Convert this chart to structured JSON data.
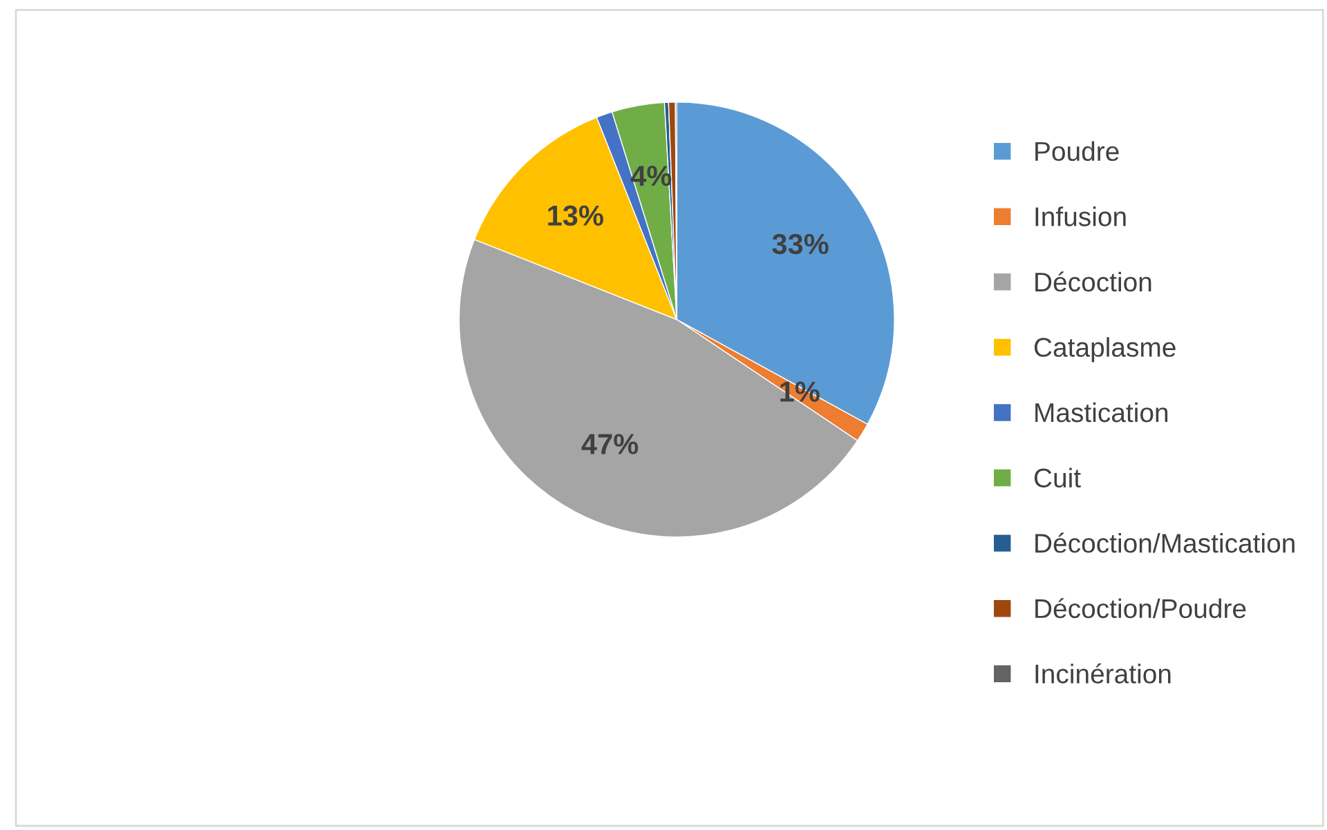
{
  "chart_data": {
    "type": "pie",
    "categories": [
      "Poudre",
      "Infusion",
      "Décoction",
      "Cataplasme",
      "Mastication",
      "Cuit",
      "Décoction/Mastication",
      "Décoction/Poudre",
      "Incinération"
    ],
    "values": [
      33,
      1.4,
      46.6,
      13,
      1.2,
      3.9,
      0.3,
      0.5,
      0.1
    ],
    "value_labels": [
      "33%",
      "1%",
      "47%",
      "13%",
      null,
      "4%",
      null,
      null,
      null
    ],
    "colors": [
      "#5b9bd5",
      "#ed7d31",
      "#a5a5a5",
      "#ffc000",
      "#4472c4",
      "#70ad47",
      "#255e91",
      "#9e480e",
      "#636363"
    ],
    "legend": "right"
  }
}
